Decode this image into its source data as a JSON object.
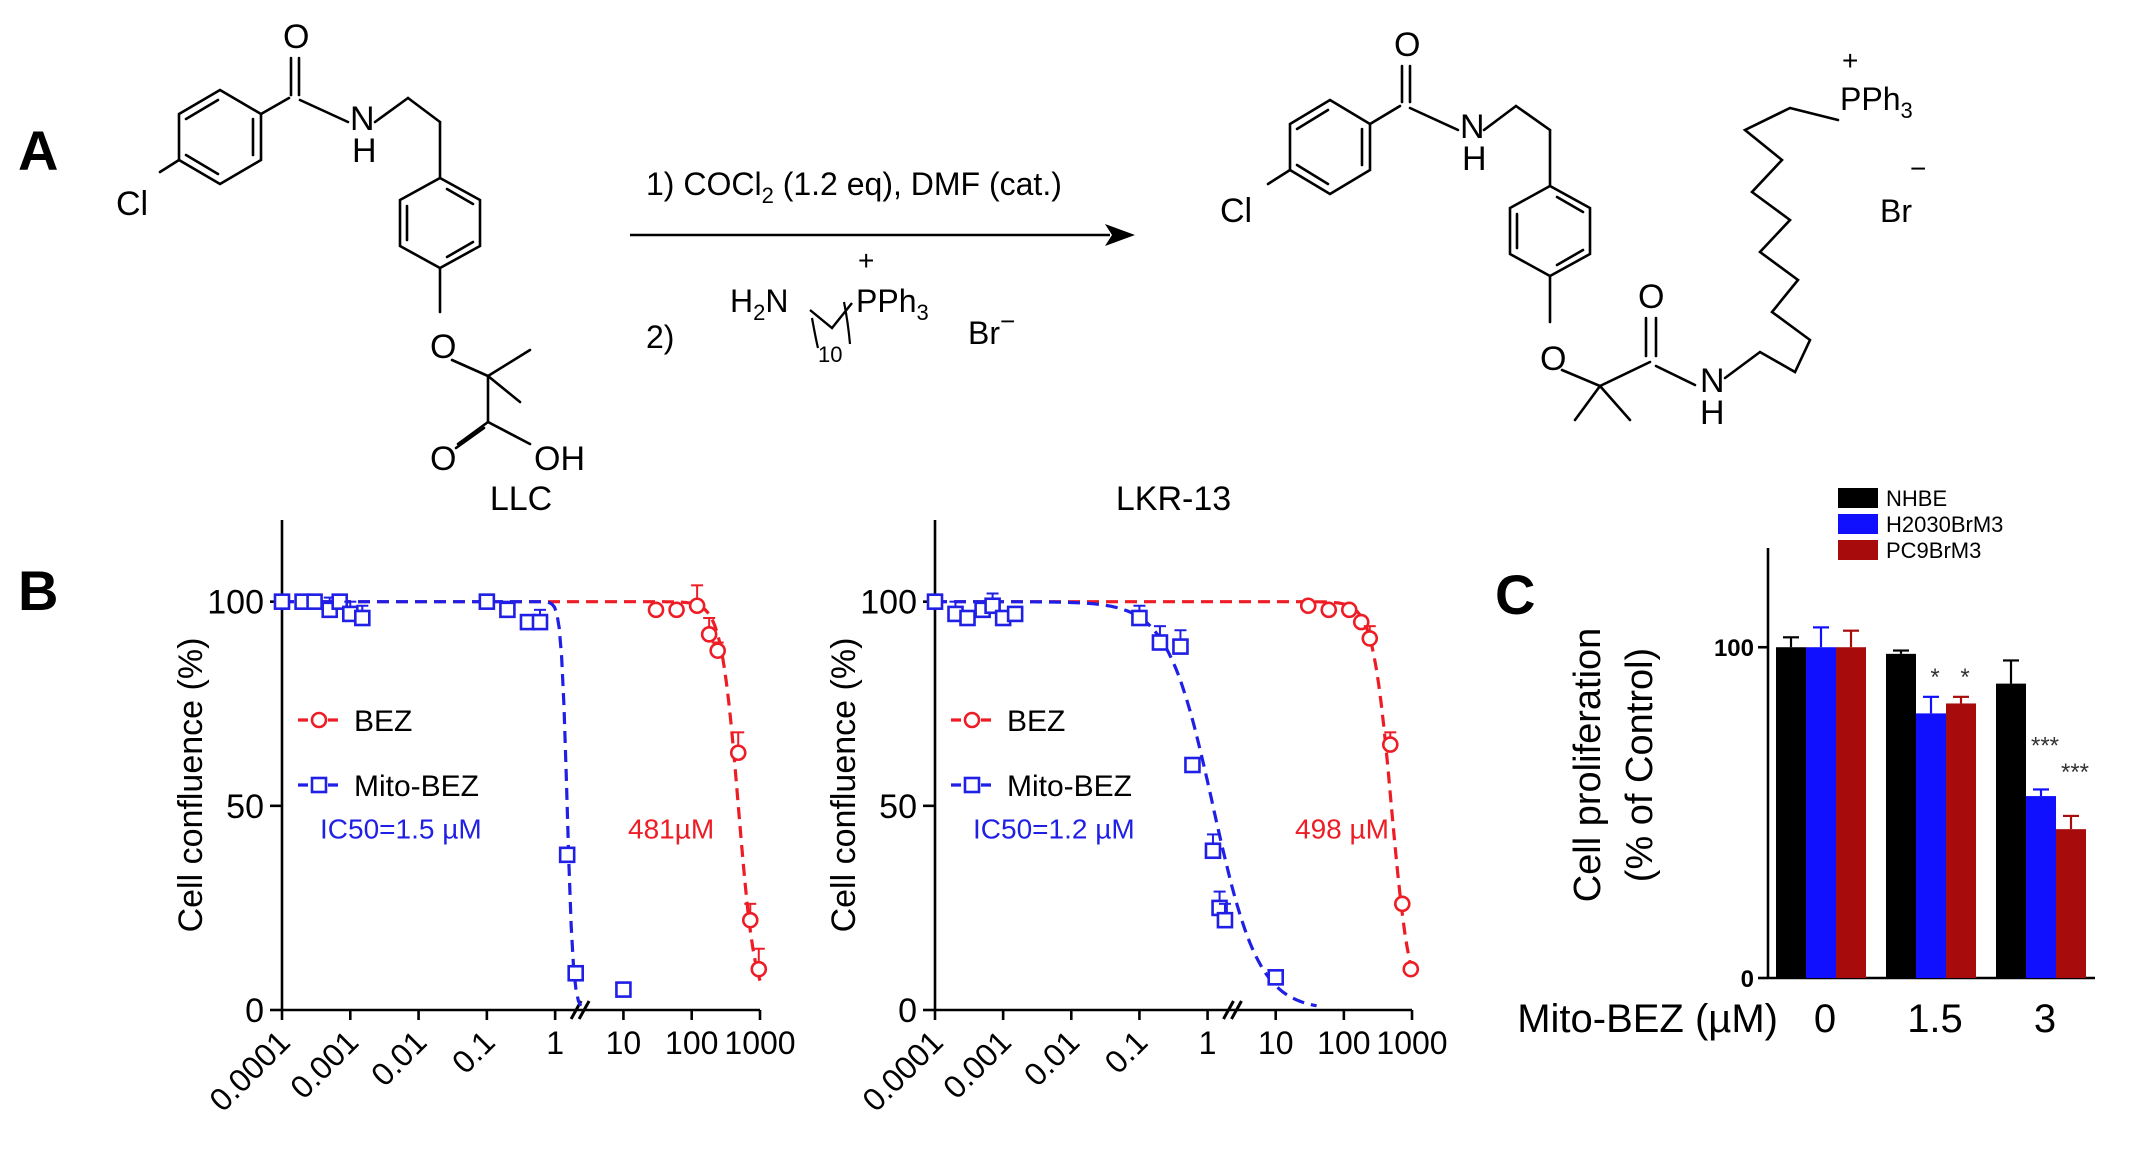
{
  "panels": {
    "a": {
      "letter": "A",
      "reactant_labels": {
        "cl": "Cl",
        "o_top": "O",
        "nh": "N",
        "h": "H",
        "o_ether": "O",
        "o_acid": "O",
        "oh": "OH"
      },
      "step1": "1) COCl",
      "step1_sub": "2",
      "step1_rest": " (1.2 eq), DMF (cat.)",
      "step2": "2)",
      "reagent": {
        "h2n": "H",
        "h2n_sub": "2",
        "n": "N",
        "chain_sub": "10",
        "charge": "+",
        "p": "PPh",
        "p_sub": "3",
        "br": "Br",
        "br_charge": "−"
      },
      "product_labels": {
        "cl": "Cl",
        "o_top": "O",
        "nh": "N",
        "h": "H",
        "o_ether": "O",
        "o_amide": "O",
        "nh2": "N",
        "h2": "H",
        "charge": "+",
        "p": "PPh",
        "p_sub": "3",
        "br": "Br",
        "br_charge": "−"
      }
    },
    "b": {
      "letter": "B"
    },
    "c": {
      "letter": "C"
    }
  },
  "chart_data": [
    {
      "type": "scatter",
      "title": "LLC",
      "xlabel": "",
      "ylabel": "Cell confluence (%)",
      "xscale": "log",
      "xticks": [
        "0.0001",
        "0.001",
        "0.01",
        "0.1",
        "1",
        "10",
        "100",
        "1000"
      ],
      "yticks": [
        "0",
        "50",
        "100"
      ],
      "ylim": [
        0,
        120
      ],
      "legend_position": "middle-left",
      "series": [
        {
          "name": "BEZ",
          "color": "#ee1c25",
          "marker": "circle",
          "x": [
            30,
            60,
            120,
            180,
            240,
            480,
            720,
            960
          ],
          "y": [
            98,
            98,
            99,
            92,
            88,
            63,
            22,
            10
          ],
          "err": [
            0,
            0,
            5,
            4,
            2,
            5,
            4,
            5
          ],
          "fit_ic50": 481,
          "fit_hill": 3.5
        },
        {
          "name": "Mito-BEZ",
          "color": "#1f1fe6",
          "marker": "square",
          "x": [
            0.0001,
            0.0002,
            0.0003,
            0.0005,
            0.0007,
            0.001,
            0.0015,
            0.1,
            0.2,
            0.4,
            0.6,
            1.5,
            2,
            10
          ],
          "y": [
            100,
            100,
            100,
            98,
            100,
            97,
            96,
            100,
            98,
            95,
            95,
            38,
            9,
            5
          ],
          "err": [
            0,
            0,
            0,
            3,
            0,
            3,
            3,
            0,
            2,
            0,
            3,
            0,
            0,
            0
          ],
          "fit_ic50": 1.5,
          "fit_hill": 10
        }
      ],
      "annotations": [
        "IC50=1.5 µM",
        "481µM"
      ]
    },
    {
      "type": "scatter",
      "title": "LKR-13",
      "xlabel": "",
      "ylabel": "Cell confluence (%)",
      "xscale": "log",
      "xticks": [
        "0.0001",
        "0.001",
        "0.01",
        "0.1",
        "1",
        "10",
        "100",
        "1000"
      ],
      "yticks": [
        "0",
        "50",
        "100"
      ],
      "ylim": [
        0,
        120
      ],
      "legend_position": "middle-left",
      "series": [
        {
          "name": "BEZ",
          "color": "#ee1c25",
          "marker": "circle",
          "x": [
            30,
            60,
            120,
            180,
            240,
            480,
            720,
            960
          ],
          "y": [
            99,
            98,
            98,
            95,
            91,
            65,
            26,
            10
          ],
          "err": [
            0,
            0,
            0,
            0,
            3,
            3,
            0,
            0
          ],
          "fit_ic50": 498,
          "fit_hill": 3.2
        },
        {
          "name": "Mito-BEZ",
          "color": "#1f1fe6",
          "marker": "square",
          "x": [
            0.0001,
            0.0002,
            0.0003,
            0.0005,
            0.0007,
            0.001,
            0.0015,
            0.1,
            0.2,
            0.4,
            0.6,
            1.2,
            1.5,
            1.8,
            10
          ],
          "y": [
            100,
            97,
            96,
            98,
            99,
            96,
            97,
            96,
            90,
            89,
            60,
            39,
            25,
            22,
            8
          ],
          "err": [
            0,
            3,
            0,
            0,
            3,
            0,
            0,
            3,
            4,
            4,
            0,
            4,
            4,
            4,
            0
          ],
          "fit_ic50": 1.2,
          "fit_hill": 1.3
        }
      ],
      "annotations": [
        "IC50=1.2 µM",
        "498 µM"
      ]
    },
    {
      "type": "bar",
      "title": "",
      "xlabel": "Mito-BEZ (µM)",
      "ylabel_lines": [
        "Cell proliferation",
        "(% of Control)"
      ],
      "categories": [
        "0",
        "1.5",
        "3"
      ],
      "yticks": [
        "0",
        "100"
      ],
      "ylim": [
        0,
        130
      ],
      "legend_position": "top",
      "series": [
        {
          "name": "NHBE",
          "color": "#000000",
          "values": [
            100,
            98,
            89
          ],
          "err": [
            3,
            1,
            7
          ]
        },
        {
          "name": "H2030BrM3",
          "color": "#1010ff",
          "values": [
            100,
            80,
            55
          ],
          "err": [
            6,
            5,
            2
          ]
        },
        {
          "name": "PC9BrM3",
          "color": "#a80b0b",
          "values": [
            100,
            83,
            45
          ],
          "err": [
            5,
            2,
            4
          ]
        }
      ],
      "significance": [
        {
          "category": "1.5",
          "series": "H2030BrM3",
          "label": "*"
        },
        {
          "category": "1.5",
          "series": "PC9BrM3",
          "label": "*"
        },
        {
          "category": "3",
          "series": "H2030BrM3",
          "label": "***"
        },
        {
          "category": "3",
          "series": "PC9BrM3",
          "label": "***"
        }
      ]
    }
  ]
}
